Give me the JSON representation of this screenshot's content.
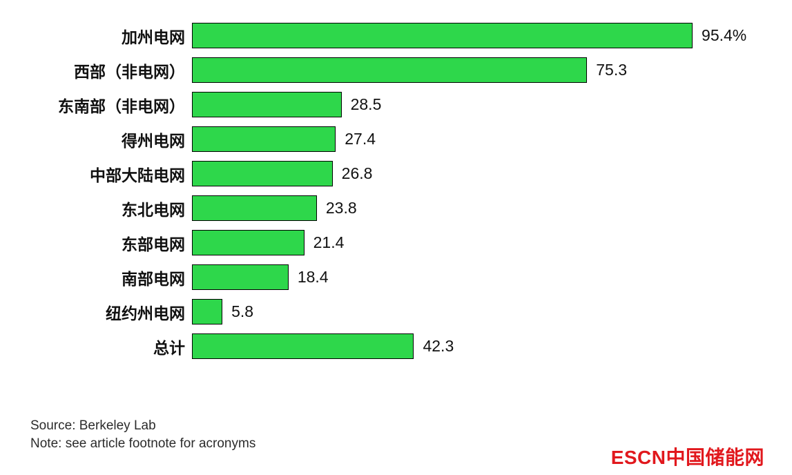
{
  "chart_data": {
    "type": "bar",
    "orientation": "horizontal",
    "title": "",
    "xlabel": "",
    "ylabel": "",
    "xlim": [
      0,
      100
    ],
    "grid": false,
    "legend": false,
    "categories": [
      "加州电网",
      "西部（非电网）",
      "东南部（非电网）",
      "得州电网",
      "中部大陆电网",
      "东北电网",
      "东部电网",
      "南部电网",
      "纽约州电网",
      "总计"
    ],
    "values": [
      95.4,
      75.3,
      28.5,
      27.4,
      26.8,
      23.8,
      21.4,
      18.4,
      5.8,
      42.3
    ],
    "value_labels": [
      "95.4%",
      "75.3",
      "28.5",
      "27.4",
      "26.8",
      "23.8",
      "21.4",
      "18.4",
      "5.8",
      "42.3"
    ],
    "bar_color": "#2ed74b",
    "bar_border_color": "#000000"
  },
  "footer": {
    "source": "Source: Berkeley Lab",
    "note": "Note: see article footnote for acronyms"
  },
  "logo": {
    "text_en": "ESCN",
    "text_zh": "中国储能网",
    "color": "#e1181d"
  }
}
